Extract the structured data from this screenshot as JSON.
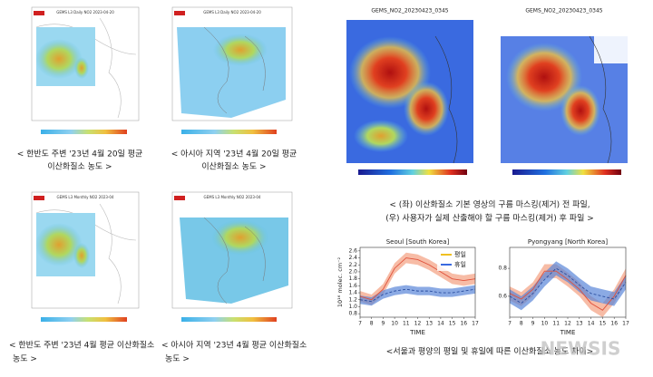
{
  "maps": [
    {
      "title": "GEMS L3 Daily NO2 2023-04-20",
      "caption": [
        "< 한반도 주변 '23년 4월 20일 평균",
        "이산화질소 농도 >"
      ]
    },
    {
      "title": "GEMS L3 Daily NO2 2023-04-20",
      "caption": [
        "< 아시아 지역 '23년 4월 20일 평균",
        "이산화질소 농도 >"
      ]
    },
    {
      "title": "GEMS L3 Monthly NO2 2023-04",
      "caption": [
        "< 한반도 주변 '23년 4월 평균 이산화질소",
        "농도 >"
      ]
    },
    {
      "title": "GEMS L3 Monthly NO2 2023-04",
      "caption": [
        "< 아시아 지역 '23년 4월 평균 이산화질소",
        "농도 >"
      ]
    }
  ],
  "cloud_maps": {
    "titles": [
      "GEMS_NO2_20230423_0345",
      "GEMS_NO2_20230423_0345"
    ],
    "caption": [
      "< (좌) 이산화질소 기본 영상의 구름 마스킹(제거) 전 파일,",
      "(우) 사용자가 실제 산출해야 할 구름 마스킹(제거) 후 파일 >"
    ]
  },
  "chart_caption": "<서울과 평양의 평일 및 휴일에 따른 이산화질소 농도 차이>",
  "watermark": "NEWSIS",
  "chart_data": [
    {
      "type": "line",
      "title": "Seoul [South Korea]",
      "y_label": "10¹⁶ molec. cm⁻²",
      "x_label": "TIME",
      "x": [
        7,
        8,
        9,
        10,
        11,
        12,
        13,
        14,
        15,
        16,
        17
      ],
      "xlim": [
        7,
        17
      ],
      "xticks": [
        7,
        8,
        9,
        10,
        11,
        12,
        13,
        14,
        15,
        16,
        17
      ],
      "ylim": [
        0.7,
        2.7
      ],
      "yticks": [
        0.8,
        {
          "value": 1.0,
          "label": "1.0"
        },
        1.2,
        1.4,
        1.6,
        1.8,
        {
          "value": 2.0,
          "label": "2.0"
        },
        2.2,
        2.4,
        2.6
      ],
      "legend": "top-right",
      "series": [
        {
          "name": "평일",
          "color": "#e0503a",
          "band_color": "#f4a080",
          "error": 0.15,
          "values": [
            1.3,
            1.2,
            1.5,
            2.1,
            2.4,
            2.35,
            2.2,
            2.0,
            1.8,
            1.75,
            1.8
          ]
        },
        {
          "name": "휴일",
          "color": "#2a4ea0",
          "band_color": "#5a86d8",
          "error": 0.12,
          "values": [
            1.2,
            1.15,
            1.35,
            1.45,
            1.5,
            1.45,
            1.45,
            1.4,
            1.4,
            1.45,
            1.5
          ]
        }
      ]
    },
    {
      "type": "line",
      "title": "Pyongyang [North Korea]",
      "x_label": "TIME",
      "x": [
        7,
        8,
        9,
        10,
        11,
        12,
        13,
        14,
        15,
        16,
        17
      ],
      "xlim": [
        7,
        17
      ],
      "xticks": [
        7,
        8,
        9,
        10,
        11,
        12,
        13,
        14,
        15,
        16,
        17
      ],
      "ylim": [
        0.45,
        0.95
      ],
      "yticks": [
        0.6,
        0.8
      ],
      "series": [
        {
          "name": "평일",
          "color": "#e0503a",
          "band_color": "#f4a080",
          "error": 0.05,
          "values": [
            0.62,
            0.58,
            0.65,
            0.78,
            0.78,
            0.72,
            0.65,
            0.55,
            0.5,
            0.6,
            0.75
          ]
        },
        {
          "name": "휴일",
          "color": "#2a4ea0",
          "band_color": "#5a86d8",
          "error": 0.05,
          "values": [
            0.6,
            0.55,
            0.62,
            0.72,
            0.8,
            0.75,
            0.68,
            0.62,
            0.6,
            0.58,
            0.7
          ]
        }
      ]
    }
  ]
}
